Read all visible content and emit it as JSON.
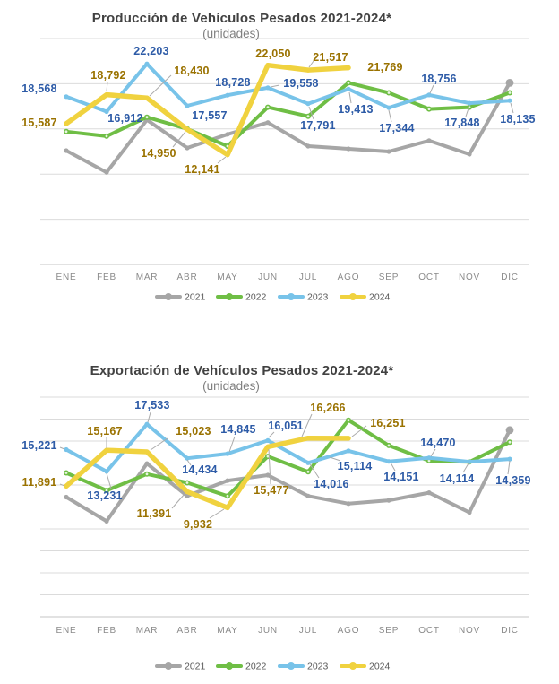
{
  "page": {
    "background": "#FFFFFF"
  },
  "chart_data": [
    {
      "type": "line",
      "title": "Producción de Vehículos Pesados 2021-2024*",
      "subtitle": "(unidades)",
      "categories": [
        "ENE",
        "FEB",
        "MAR",
        "ABR",
        "MAY",
        "JUN",
        "JUL",
        "AGO",
        "SEP",
        "OCT",
        "NOV",
        "DIC"
      ],
      "ylim": [
        0,
        25000
      ],
      "grid_step": 5000,
      "grid": "horizontal",
      "legend_position": "bottom",
      "series": [
        {
          "name": "2021",
          "color": "#A6A6A6",
          "values_estimated": true,
          "label_color": null,
          "labels": null,
          "values": [
            12600,
            10200,
            16000,
            12900,
            14400,
            15700,
            13100,
            12800,
            12500,
            13700,
            12200,
            20100
          ]
        },
        {
          "name": "2022",
          "color": "#6FBE45",
          "values_estimated": true,
          "label_color": null,
          "labels": null,
          "values": [
            14700,
            14200,
            16300,
            15000,
            13100,
            17400,
            16400,
            20100,
            19000,
            17200,
            17400,
            19000
          ]
        },
        {
          "name": "2023",
          "color": "#78C3E9",
          "values_estimated": false,
          "label_color": "#2D5BA7",
          "values": [
            18568,
            16912,
            22203,
            17557,
            18728,
            19558,
            17791,
            19413,
            17344,
            18756,
            17848,
            18135
          ],
          "labels": [
            "18,568",
            "16,912",
            "22,203",
            "17,557",
            "18,728",
            "19,558",
            "17,791",
            "19,413",
            "17,344",
            "18,756",
            "17,848",
            "18,135"
          ]
        },
        {
          "name": "2024",
          "color": "#F0D23F",
          "values_estimated": false,
          "label_color": "#9A7200",
          "values": [
            15587,
            18792,
            18430,
            14950,
            12141,
            22050,
            21517,
            21769
          ],
          "labels": [
            "15,587",
            "18,792",
            "18,430",
            "14,950",
            "12,141",
            "22,050",
            "21,517",
            "21,769"
          ]
        }
      ]
    },
    {
      "type": "line",
      "title": "Exportación de Vehículos Pesados 2021-2024*",
      "subtitle": "(unidades)",
      "categories": [
        "ENE",
        "FEB",
        "MAR",
        "ABR",
        "MAY",
        "JUN",
        "JUL",
        "AGO",
        "SEP",
        "OCT",
        "NOV",
        "DIC"
      ],
      "ylim": [
        0,
        20000
      ],
      "grid_step": 2000,
      "grid": "horizontal",
      "legend_position": "bottom",
      "series": [
        {
          "name": "2021",
          "color": "#A6A6A6",
          "values_estimated": true,
          "label_color": null,
          "labels": null,
          "values": [
            10900,
            8700,
            13950,
            11000,
            12400,
            12900,
            11000,
            10300,
            10600,
            11300,
            9500,
            17000
          ]
        },
        {
          "name": "2022",
          "color": "#6FBE45",
          "values_estimated": true,
          "label_color": null,
          "labels": null,
          "values": [
            13100,
            11500,
            13000,
            12200,
            11000,
            14600,
            13200,
            17900,
            15600,
            14200,
            14100,
            15900
          ]
        },
        {
          "name": "2023",
          "color": "#78C3E9",
          "values_estimated": false,
          "label_color": "#2D5BA7",
          "values": [
            15221,
            13231,
            17533,
            14434,
            14845,
            16051,
            14016,
            15114,
            14151,
            14470,
            14114,
            14359
          ],
          "labels": [
            "15,221",
            "13,231",
            "17,533",
            "14,434",
            "14,845",
            "16,051",
            "14,016",
            "15,114",
            "14,151",
            "14,470",
            "14,114",
            "14,359"
          ]
        },
        {
          "name": "2024",
          "color": "#F0D23F",
          "values_estimated": false,
          "label_color": "#9A7200",
          "values": [
            11891,
            15167,
            15023,
            11391,
            9932,
            15477,
            16266,
            16251
          ],
          "labels": [
            "11,891",
            "15,167",
            "15,023",
            "11,391",
            "9,932",
            "15,477",
            "16,266",
            "16,251"
          ]
        }
      ]
    }
  ]
}
